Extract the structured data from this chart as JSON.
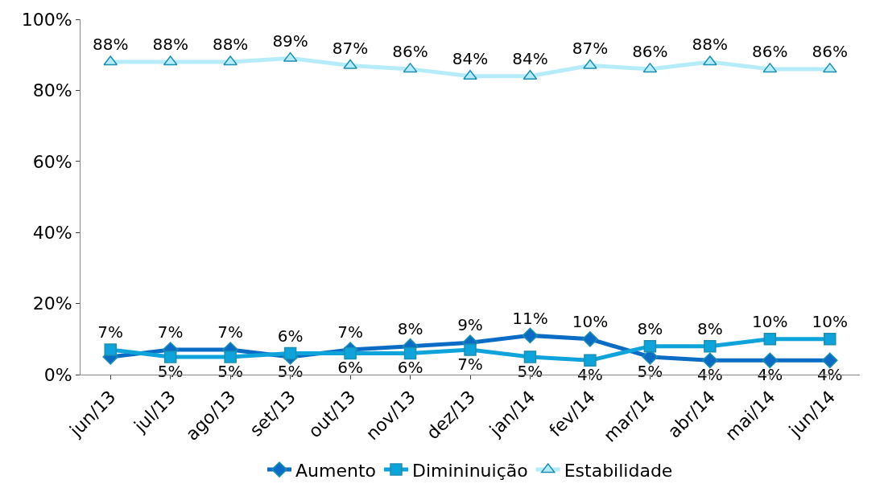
{
  "chart_data": {
    "type": "line",
    "categories": [
      "jun/13",
      "jul/13",
      "ago/13",
      "set/13",
      "out/13",
      "nov/13",
      "dez/13",
      "jan/14",
      "fev/14",
      "mar/14",
      "abr/14",
      "mai/14",
      "jun/14"
    ],
    "series": [
      {
        "name": "Aumento",
        "color": "#0b6cc6",
        "marker": "diamond",
        "values": [
          5,
          7,
          7,
          5,
          7,
          8,
          9,
          11,
          10,
          5,
          4,
          4,
          4
        ],
        "value_labels": [
          null,
          "7%",
          "7%",
          "5%",
          "7%",
          "8%",
          "9%",
          "11%",
          "10%",
          "5%",
          "4%",
          "4%",
          "4%"
        ]
      },
      {
        "name": "Dimininuição",
        "color": "#0fa3dc",
        "marker": "square",
        "values": [
          7,
          5,
          5,
          6,
          6,
          6,
          7,
          5,
          4,
          8,
          8,
          10,
          10
        ],
        "value_labels": [
          "7%",
          "5%",
          "5%",
          "6%",
          "6%",
          "6%",
          "7%",
          "5%",
          "4%",
          "8%",
          "8%",
          "10%",
          "10%"
        ]
      },
      {
        "name": "Estabilidade",
        "color": "#b6ecf9",
        "marker": "triangle",
        "values": [
          88,
          88,
          88,
          89,
          87,
          86,
          84,
          84,
          87,
          86,
          88,
          86,
          86
        ],
        "value_labels": [
          "88%",
          "88%",
          "88%",
          "89%",
          "87%",
          "86%",
          "84%",
          "84%",
          "87%",
          "86%",
          "88%",
          "86%",
          "86%"
        ]
      }
    ],
    "ylim": [
      0,
      100
    ],
    "yticks": [
      {
        "value": 0,
        "label": "0%"
      },
      {
        "value": 20,
        "label": "20%"
      },
      {
        "value": 40,
        "label": "40%"
      },
      {
        "value": 60,
        "label": "60%"
      },
      {
        "value": 80,
        "label": "80%"
      },
      {
        "value": 100,
        "label": "100%"
      }
    ],
    "legend": "bottom",
    "line_style": "solid"
  }
}
